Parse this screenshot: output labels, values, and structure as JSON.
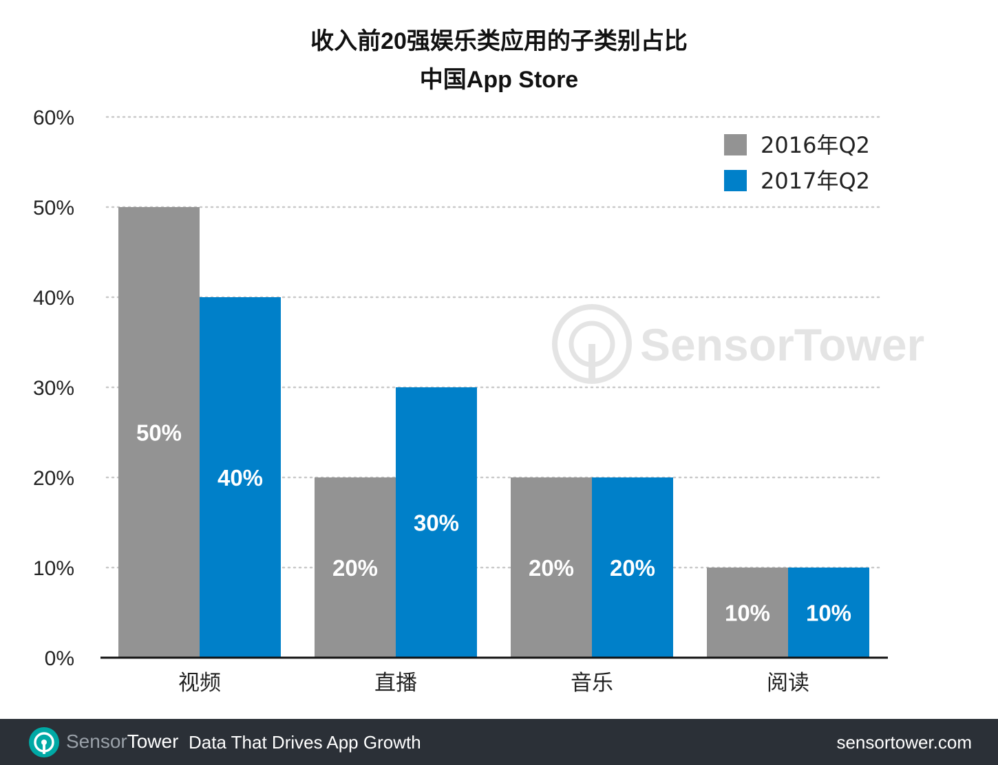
{
  "title": "收入前20强娱乐类应用的子类别占比",
  "subtitle": "中国App Store",
  "watermark": "SensorTower",
  "colors": {
    "series_2016": "#939393",
    "series_2017": "#0080c9",
    "grid": "#c9c9c9",
    "footer_bg": "#2b3037",
    "brand_accent": "#00a9a5"
  },
  "chart_data": {
    "type": "bar",
    "categories": [
      "视频",
      "直播",
      "音乐",
      "阅读"
    ],
    "series": [
      {
        "name": "2016年Q2",
        "values": [
          50,
          20,
          20,
          10
        ]
      },
      {
        "name": "2017年Q2",
        "values": [
          40,
          30,
          20,
          10
        ]
      }
    ],
    "data_labels": [
      [
        "50%",
        "20%",
        "20%",
        "10%"
      ],
      [
        "40%",
        "30%",
        "20%",
        "10%"
      ]
    ],
    "y_ticks": [
      "0%",
      "10%",
      "20%",
      "30%",
      "40%",
      "50%",
      "60%"
    ],
    "ylim": [
      0,
      60
    ],
    "grid": true,
    "legend_position": "top-right"
  },
  "footer": {
    "brand_part1": "Sensor",
    "brand_part2": "Tower",
    "tagline": "Data That Drives App Growth",
    "url": "sensortower.com",
    "logo_icon": "sensortower-logo-icon"
  }
}
